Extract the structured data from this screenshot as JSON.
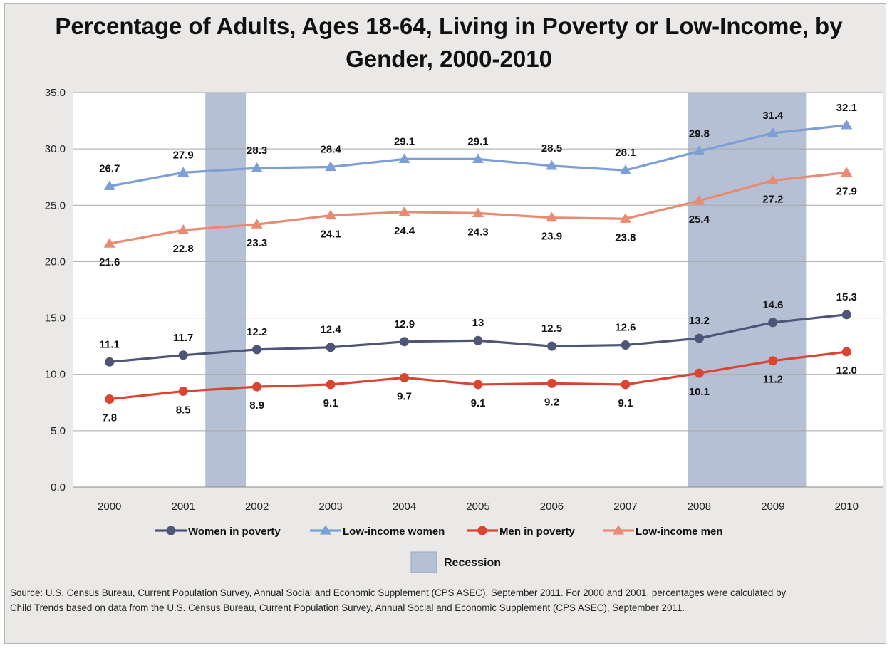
{
  "chart_data": {
    "type": "line",
    "title": "Percentage of Adults, Ages 18-64, Living in Poverty or Low-Income, by Gender, 2000-2010",
    "categories": [
      "2000",
      "2001",
      "2002",
      "2003",
      "2004",
      "2005",
      "2006",
      "2007",
      "2008",
      "2009",
      "2010"
    ],
    "ylim": [
      0,
      35
    ],
    "yticks": [
      "0.0",
      "5.0",
      "10.0",
      "15.0",
      "20.0",
      "25.0",
      "30.0",
      "35.0"
    ],
    "grid": true,
    "legend_position": "bottom",
    "series": [
      {
        "name": "Women in poverty",
        "marker": "circle",
        "color": "#4f5577",
        "values": [
          11.1,
          11.7,
          12.2,
          12.4,
          12.9,
          13,
          12.5,
          12.6,
          13.2,
          14.6,
          15.3
        ],
        "labels": [
          "11.1",
          "11.7",
          "12.2",
          "12.4",
          "12.9",
          "13",
          "12.5",
          "12.6",
          "13.2",
          "14.6",
          "15.3"
        ],
        "label_position": "above"
      },
      {
        "name": "Low-income women",
        "marker": "triangle",
        "color": "#7d9fd5",
        "values": [
          26.7,
          27.9,
          28.3,
          28.4,
          29.1,
          29.1,
          28.5,
          28.1,
          29.8,
          31.4,
          32.1
        ],
        "labels": [
          "26.7",
          "27.9",
          "28.3",
          "28.4",
          "29.1",
          "29.1",
          "28.5",
          "28.1",
          "29.8",
          "31.4",
          "32.1"
        ],
        "label_position": "above"
      },
      {
        "name": "Men in poverty",
        "marker": "circle",
        "color": "#dc4432",
        "values": [
          7.8,
          8.5,
          8.9,
          9.1,
          9.7,
          9.1,
          9.2,
          9.1,
          10.1,
          11.2,
          12.0
        ],
        "labels": [
          "7.8",
          "8.5",
          "8.9",
          "9.1",
          "9.7",
          "9.1",
          "9.2",
          "9.1",
          "10.1",
          "11.2",
          "12.0"
        ],
        "label_position": "below"
      },
      {
        "name": "Low-income men",
        "marker": "triangle",
        "color": "#e98a72",
        "values": [
          21.6,
          22.8,
          23.3,
          24.1,
          24.4,
          24.3,
          23.9,
          23.8,
          25.4,
          27.2,
          27.9
        ],
        "labels": [
          "21.6",
          "22.8",
          "23.3",
          "24.1",
          "24.4",
          "24.3",
          "23.9",
          "23.8",
          "25.4",
          "27.2",
          "27.9"
        ],
        "label_position": "below"
      }
    ],
    "recession": {
      "name": "Recession",
      "color": "#b5c0d5",
      "periods": [
        [
          1.3,
          1.85
        ],
        [
          7.85,
          9.45
        ]
      ]
    }
  },
  "source_note": "Source: U.S. Census Bureau, Current Population Survey, Annual Social and Economic Supplement (CPS ASEC), September 2011. For 2000 and 2001, percentages were calculated by Child Trends based on data from the U.S. Census Bureau, Current Population Survey, Annual Social and Economic Supplement (CPS ASEC), September 2011."
}
